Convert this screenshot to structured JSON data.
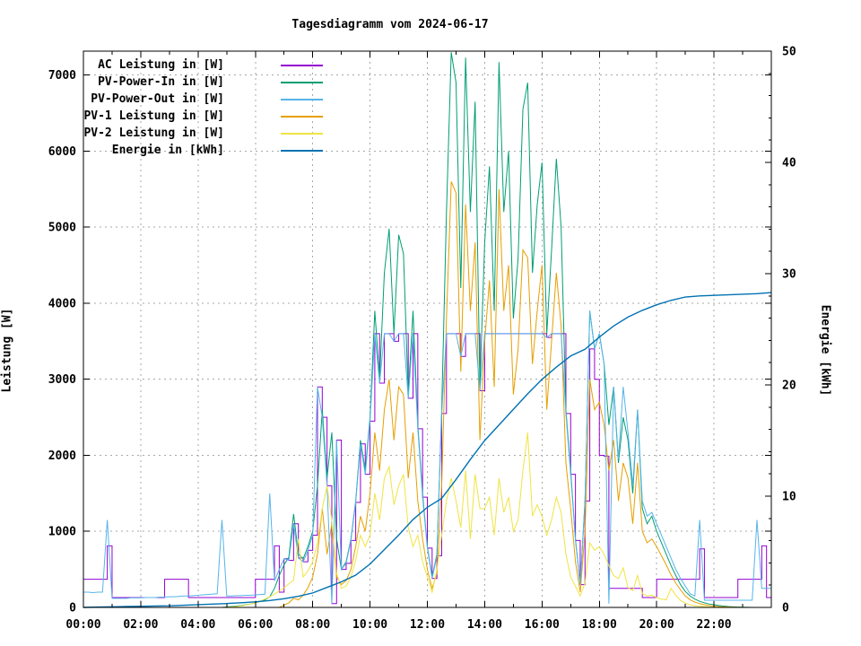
{
  "title": "Tagesdiagramm vom 2024-06-17",
  "chart_data": {
    "type": "line",
    "title": "Tagesdiagramm vom 2024-06-17",
    "x_axis": {
      "start_hour": 0,
      "end_hour": 24,
      "major_tick_hours": 2,
      "minor_tick_hours": 1,
      "tick_labels": [
        {
          "h": 0,
          "label": "00:00"
        },
        {
          "h": 2,
          "label": "02:00"
        },
        {
          "h": 4,
          "label": "04:00"
        },
        {
          "h": 6,
          "label": "06:00"
        },
        {
          "h": 8,
          "label": "08:00"
        },
        {
          "h": 10,
          "label": "10:00"
        },
        {
          "h": 12,
          "label": "12:00"
        },
        {
          "h": 14,
          "label": "14:00"
        },
        {
          "h": 16,
          "label": "16:00"
        },
        {
          "h": 18,
          "label": "18:00"
        },
        {
          "h": 20,
          "label": "20:00"
        },
        {
          "h": 22,
          "label": "22:00"
        }
      ]
    },
    "y_left": {
      "label": "Leistung [W]",
      "ticks": [
        0,
        1000,
        2000,
        3000,
        4000,
        5000,
        6000,
        7000
      ],
      "tick_max": 7000,
      "display_max": 7315
    },
    "y_right": {
      "label": "Energie [kWh]",
      "ticks": [
        0,
        10,
        20,
        30,
        40,
        50
      ],
      "max": 50,
      "minor_step": 2
    },
    "grid": {
      "horizontal_every_w": 1000,
      "vertical_every_hours": 2,
      "style": "dotted",
      "color": "#a8a8a8"
    },
    "legend_position": "top-left-inside",
    "draw_order": [
      "ac-leistung",
      "pv-power-in",
      "pv-1-leistung",
      "pv-power-out",
      "pv-2-leistung",
      "energie"
    ],
    "series": [
      {
        "id": "ac-leistung",
        "label": "AC Leistung in [W]",
        "color": "#9400d3",
        "axis": "left",
        "step_minutes": 10,
        "render": "step",
        "values": [
          370,
          370,
          370,
          370,
          370,
          810,
          130,
          130,
          130,
          130,
          130,
          130,
          130,
          130,
          130,
          130,
          130,
          370,
          370,
          370,
          370,
          370,
          130,
          130,
          130,
          130,
          130,
          130,
          130,
          130,
          130,
          130,
          130,
          130,
          130,
          130,
          370,
          370,
          370,
          370,
          810,
          200,
          640,
          620,
          1100,
          650,
          600,
          750,
          950,
          2900,
          2500,
          1600,
          50,
          2200,
          500,
          580,
          880,
          1380,
          2150,
          1750,
          2450,
          3600,
          2950,
          3600,
          3600,
          3500,
          3600,
          3600,
          2750,
          3600,
          2350,
          1450,
          780,
          380,
          680,
          2550,
          3600,
          3600,
          3600,
          3300,
          3600,
          3600,
          3600,
          2850,
          3600,
          3600,
          3600,
          3600,
          3600,
          3600,
          3600,
          3600,
          3600,
          3600,
          3600,
          3600,
          3600,
          3550,
          3600,
          3600,
          3600,
          2550,
          1750,
          880,
          300,
          1400,
          3400,
          3000,
          2000,
          1990,
          250,
          250,
          250,
          250,
          250,
          250,
          250,
          130,
          130,
          130,
          370,
          370,
          370,
          370,
          370,
          370,
          370,
          370,
          370,
          770,
          130,
          130,
          130,
          130,
          130,
          130,
          130,
          370,
          370,
          370,
          370,
          370,
          810,
          130,
          130
        ]
      },
      {
        "id": "pv-power-in",
        "label": "PV-Power-In in [W]",
        "color": "#009e73",
        "axis": "left",
        "step_minutes": 10,
        "render": "line",
        "values": [
          0,
          0,
          0,
          0,
          0,
          0,
          0,
          0,
          0,
          0,
          0,
          0,
          0,
          0,
          0,
          0,
          0,
          0,
          0,
          0,
          0,
          0,
          0,
          0,
          0,
          0,
          0,
          0,
          0,
          0,
          8,
          12,
          18,
          25,
          35,
          45,
          60,
          80,
          100,
          140,
          250,
          420,
          560,
          660,
          1230,
          700,
          640,
          800,
          1000,
          1600,
          2600,
          1700,
          2300,
          900,
          500,
          600,
          900,
          1400,
          2200,
          1800,
          2500,
          3900,
          3000,
          4400,
          4980,
          3600,
          4900,
          4650,
          2800,
          3900,
          2400,
          1500,
          800,
          400,
          700,
          2600,
          5200,
          7300,
          6900,
          4200,
          7230,
          5200,
          6650,
          2900,
          4800,
          5800,
          3900,
          7170,
          5200,
          6000,
          3800,
          4600,
          6550,
          6900,
          4400,
          5300,
          5850,
          3600,
          4700,
          5900,
          5000,
          2600,
          1800,
          900,
          300,
          1400,
          3900,
          3400,
          3600,
          3200,
          2400,
          2900,
          1900,
          2500,
          2200,
          1500,
          2600,
          1300,
          1100,
          1200,
          1000,
          850,
          700,
          550,
          420,
          300,
          210,
          150,
          110,
          80,
          60,
          45,
          35,
          25,
          18,
          12,
          8,
          5,
          3,
          2,
          0,
          0,
          0,
          0,
          0
        ]
      },
      {
        "id": "pv-power-out",
        "label": "PV-Power-Out in [W]",
        "color": "#56b4e9",
        "axis": "left",
        "step_minutes": 10,
        "render": "line",
        "values": [
          200,
          200,
          195,
          200,
          200,
          1150,
          120,
          120,
          120,
          120,
          125,
          125,
          125,
          130,
          130,
          130,
          135,
          135,
          140,
          140,
          145,
          150,
          150,
          155,
          160,
          165,
          170,
          175,
          180,
          1150,
          150,
          150,
          155,
          155,
          160,
          160,
          165,
          170,
          175,
          1500,
          350,
          500,
          640,
          620,
          1100,
          650,
          600,
          750,
          950,
          2900,
          2500,
          1600,
          50,
          2200,
          500,
          580,
          880,
          1380,
          2150,
          1750,
          2450,
          3600,
          2950,
          3600,
          3600,
          3500,
          3600,
          3600,
          2750,
          3600,
          2350,
          1450,
          780,
          380,
          680,
          2550,
          3600,
          3600,
          3600,
          3300,
          3600,
          3600,
          3600,
          2850,
          3600,
          3600,
          3600,
          3600,
          3600,
          3600,
          3600,
          3600,
          3600,
          3600,
          3600,
          3600,
          3600,
          3550,
          3600,
          3600,
          3600,
          2550,
          1750,
          880,
          300,
          1400,
          3900,
          3400,
          3600,
          3200,
          50,
          2900,
          1950,
          2900,
          2300,
          1600,
          2600,
          1400,
          1200,
          1250,
          1100,
          950,
          800,
          650,
          500,
          380,
          280,
          180,
          150,
          1150,
          95,
          95,
          95,
          95,
          95,
          95,
          95,
          95,
          95,
          95,
          95,
          1150,
          250,
          250,
          250
        ]
      },
      {
        "id": "pv-1-leistung",
        "label": "PV-1 Leistung in [W]",
        "color": "#e69f00",
        "axis": "left",
        "step_minutes": 10,
        "render": "line",
        "values": [
          0,
          0,
          0,
          0,
          0,
          0,
          0,
          0,
          0,
          0,
          0,
          0,
          0,
          0,
          0,
          0,
          0,
          0,
          0,
          0,
          0,
          0,
          0,
          0,
          0,
          0,
          0,
          0,
          0,
          0,
          0,
          0,
          0,
          0,
          0,
          0,
          0,
          0,
          0,
          0,
          0,
          0,
          30,
          60,
          120,
          100,
          160,
          260,
          400,
          700,
          1300,
          700,
          1100,
          400,
          300,
          350,
          500,
          800,
          1200,
          1000,
          1500,
          2300,
          1800,
          2600,
          3000,
          2200,
          2900,
          2800,
          1700,
          2300,
          1400,
          900,
          500,
          250,
          450,
          1600,
          3800,
          5600,
          5450,
          3100,
          5300,
          3900,
          4800,
          2200,
          3500,
          4300,
          2900,
          5500,
          3900,
          4500,
          2800,
          3400,
          4700,
          4600,
          3200,
          3900,
          4500,
          2600,
          3500,
          4400,
          3700,
          1900,
          1300,
          600,
          200,
          1000,
          3000,
          2600,
          2700,
          2400,
          1800,
          2200,
          1400,
          1900,
          1700,
          1100,
          1900,
          1000,
          850,
          900,
          800,
          680,
          560,
          430,
          320,
          230,
          150,
          100,
          70,
          50,
          35,
          25,
          18,
          12,
          8,
          5,
          3,
          2,
          0,
          0,
          0,
          0,
          0,
          0,
          0
        ]
      },
      {
        "id": "pv-2-leistung",
        "label": "PV-2 Leistung in [W]",
        "color": "#f0e442",
        "axis": "left",
        "step_minutes": 10,
        "render": "line",
        "values": [
          0,
          0,
          0,
          0,
          0,
          0,
          0,
          0,
          0,
          0,
          0,
          0,
          0,
          0,
          0,
          0,
          0,
          0,
          0,
          0,
          0,
          0,
          0,
          0,
          0,
          0,
          0,
          0,
          0,
          0,
          3,
          6,
          12,
          20,
          32,
          45,
          60,
          85,
          110,
          140,
          175,
          215,
          260,
          310,
          360,
          900,
          400,
          480,
          600,
          850,
          1300,
          1600,
          1150,
          450,
          250,
          280,
          400,
          620,
          950,
          800,
          950,
          1500,
          1150,
          1700,
          1850,
          1350,
          1600,
          1750,
          1050,
          800,
          950,
          600,
          400,
          200,
          500,
          950,
          1400,
          1700,
          1400,
          1050,
          1800,
          900,
          1750,
          1300,
          1300,
          1450,
          950,
          1700,
          1250,
          1450,
          1000,
          1150,
          1800,
          2300,
          1200,
          1350,
          1200,
          950,
          1150,
          1450,
          1250,
          700,
          400,
          280,
          150,
          320,
          850,
          750,
          800,
          700,
          550,
          420,
          380,
          520,
          260,
          220,
          420,
          180,
          150,
          160,
          130,
          110,
          100,
          250,
          160,
          90,
          55,
          35,
          22,
          15,
          10,
          6,
          4,
          2,
          0,
          0,
          0,
          0,
          0,
          0,
          0,
          0,
          0,
          0,
          0
        ]
      },
      {
        "id": "energie",
        "label": "Energie in [kWh]",
        "color": "#0072b2",
        "axis": "right",
        "step_minutes": 30,
        "render": "line",
        "values": [
          0,
          0.03,
          0.05,
          0.08,
          0.1,
          0.13,
          0.15,
          0.2,
          0.25,
          0.3,
          0.35,
          0.42,
          0.5,
          0.62,
          0.78,
          1.0,
          1.3,
          1.8,
          2.3,
          2.9,
          3.9,
          5.2,
          6.5,
          7.9,
          9.0,
          9.8,
          11.5,
          13.3,
          15.0,
          16.4,
          17.8,
          19.2,
          20.5,
          21.6,
          22.6,
          23.2,
          24.3,
          25.3,
          26.1,
          26.7,
          27.2,
          27.6,
          27.9,
          28.0,
          28.05,
          28.1,
          28.15,
          28.2,
          28.3
        ]
      }
    ]
  }
}
